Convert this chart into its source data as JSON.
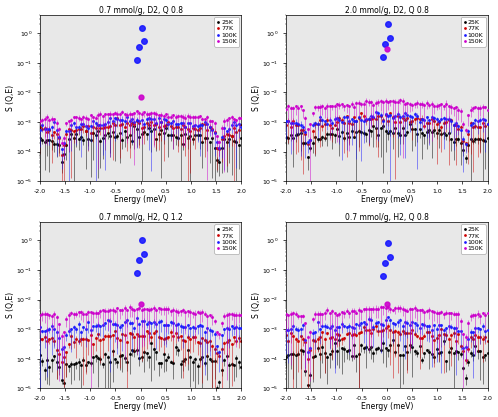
{
  "panels": [
    {
      "title": "0.7 mmol/g, D2, Q 0.8",
      "row": 0,
      "col": 0,
      "flat": [
        0.00025,
        0.0005,
        0.0007,
        0.0012
      ],
      "elastic_amp": [
        0.0,
        0.0,
        1.5,
        0.007
      ],
      "noise": [
        0.6,
        0.5,
        0.4,
        0.2
      ]
    },
    {
      "title": "2.0 mmol/g, D2, Q 0.8",
      "row": 0,
      "col": 1,
      "flat": [
        0.0003,
        0.0008,
        0.001,
        0.003
      ],
      "elastic_amp": [
        0.0,
        0.0,
        2.0,
        0.3
      ],
      "noise": [
        0.5,
        0.5,
        0.4,
        0.2
      ]
    },
    {
      "title": "0.7 mmol/g, H2, Q 1.2",
      "row": 1,
      "col": 0,
      "flat": [
        8e-05,
        0.0004,
        0.001,
        0.003
      ],
      "elastic_amp": [
        0.0,
        0.0,
        1.0,
        0.007
      ],
      "noise": [
        0.9,
        0.5,
        0.4,
        0.2
      ]
    },
    {
      "title": "0.7 mmol/g, H2, Q 0.8",
      "row": 1,
      "col": 1,
      "flat": [
        0.00015,
        0.0005,
        0.001,
        0.003
      ],
      "elastic_amp": [
        0.0,
        0.0,
        0.8,
        0.007
      ],
      "noise": [
        0.8,
        0.5,
        0.4,
        0.2
      ]
    }
  ],
  "legend_labels": [
    "25K",
    "77K",
    "100K",
    "150K"
  ],
  "legend_colors": [
    "black",
    "#cc0000",
    "#1a1aff",
    "#cc00cc"
  ],
  "xlabel": "Energy (meV)",
  "ylabel": "S (Q,E)",
  "xlim": [
    -2.0,
    2.0
  ],
  "ylim": [
    1e-05,
    4.0
  ],
  "xticks": [
    -2.0,
    -1.5,
    -1.0,
    -0.5,
    0.0,
    0.5,
    1.0,
    1.5,
    2.0
  ]
}
